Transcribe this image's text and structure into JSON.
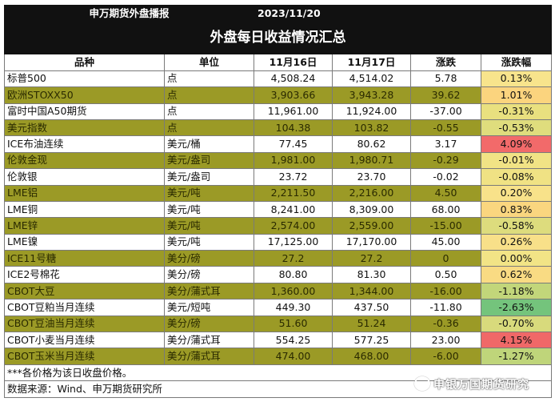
{
  "header": {
    "report_name": "申万期货外盘播报",
    "date": "2023/11/20"
  },
  "title": "外盘每日收益情况汇总",
  "columns": [
    "品种",
    "单位",
    "11月16日",
    "11月17日",
    "涨跌",
    "涨跌幅"
  ],
  "rows": [
    {
      "name": "标普500",
      "unit": "点",
      "d16": "4,508.24",
      "d17": "4,514.02",
      "chg": "5.78",
      "pct": "0.13%",
      "pct_color": "#f8e48c",
      "olive": false
    },
    {
      "name": "欧洲STOXX50",
      "unit": "点",
      "d16": "3,903.66",
      "d17": "3,943.28",
      "chg": "39.62",
      "pct": "1.01%",
      "pct_color": "#fbd47e",
      "olive": true
    },
    {
      "name": "富时中国A50期货",
      "unit": "点",
      "d16": "11,961.00",
      "d17": "11,924.00",
      "chg": "-37.00",
      "pct": "-0.31%",
      "pct_color": "#e9e07f",
      "olive": false
    },
    {
      "name": "美元指数",
      "unit": "点",
      "d16": "104.38",
      "d17": "103.82",
      "chg": "-0.55",
      "pct": "-0.53%",
      "pct_color": "#dfdd7d",
      "olive": true
    },
    {
      "name": "ICE布油连续",
      "unit": "美元/桶",
      "d16": "77.45",
      "d17": "80.62",
      "chg": "3.17",
      "pct": "4.09%",
      "pct_color": "#f26a6a",
      "olive": false
    },
    {
      "name": "伦敦金现",
      "unit": "美元/盎司",
      "d16": "1,981.00",
      "d17": "1,980.71",
      "chg": "-0.29",
      "pct": "-0.01%",
      "pct_color": "#f1e385",
      "olive": true
    },
    {
      "name": "伦敦银",
      "unit": "美元/盎司",
      "d16": "23.72",
      "d17": "23.70",
      "chg": "-0.02",
      "pct": "-0.08%",
      "pct_color": "#f0e284",
      "olive": false
    },
    {
      "name": "LME铝",
      "unit": "美元/吨",
      "d16": "2,211.50",
      "d17": "2,216.00",
      "chg": "4.50",
      "pct": "0.20%",
      "pct_color": "#f8e28a",
      "olive": true
    },
    {
      "name": "LME铜",
      "unit": "美元/吨",
      "d16": "8,241.00",
      "d17": "8,309.00",
      "chg": "68.00",
      "pct": "0.83%",
      "pct_color": "#fad67f",
      "olive": false
    },
    {
      "name": "LME锌",
      "unit": "美元/吨",
      "d16": "2,574.00",
      "d17": "2,559.00",
      "chg": "-15.00",
      "pct": "-0.58%",
      "pct_color": "#dddc7d",
      "olive": true
    },
    {
      "name": "LME镍",
      "unit": "美元/吨",
      "d16": "17,125.00",
      "d17": "17,170.00",
      "chg": "45.00",
      "pct": "0.26%",
      "pct_color": "#f8e089",
      "olive": false
    },
    {
      "name": "ICE11号糖",
      "unit": "美分/磅",
      "d16": "27.2",
      "d17": "27.2",
      "chg": "0",
      "pct": "0.00%",
      "pct_color": "#f2e486",
      "olive": true
    },
    {
      "name": "ICE2号棉花",
      "unit": "美分/磅",
      "d16": "80.80",
      "d17": "81.30",
      "chg": "0.50",
      "pct": "0.62%",
      "pct_color": "#f9db83",
      "olive": false
    },
    {
      "name": "CBOT大豆",
      "unit": "美分/蒲式耳",
      "d16": "1,360.00",
      "d17": "1,344.00",
      "chg": "-16.00",
      "pct": "-1.18%",
      "pct_color": "#c2d67a",
      "olive": true
    },
    {
      "name": "CBOT豆粕当月连续",
      "unit": "美元/短吨",
      "d16": "449.30",
      "d17": "437.50",
      "chg": "-11.80",
      "pct": "-2.63%",
      "pct_color": "#74c47c",
      "olive": false
    },
    {
      "name": "CBOT豆油当月连续",
      "unit": "美分/磅",
      "d16": "51.60",
      "d17": "51.24",
      "chg": "-0.36",
      "pct": "-0.70%",
      "pct_color": "#d8da7c",
      "olive": true
    },
    {
      "name": "CBOT小麦当月连续",
      "unit": "美分/蒲式耳",
      "d16": "554.25",
      "d17": "577.25",
      "chg": "23.00",
      "pct": "4.15%",
      "pct_color": "#f06868",
      "olive": false
    },
    {
      "name": "CBOT玉米当月连续",
      "unit": "美分/蒲式耳",
      "d16": "474.00",
      "d17": "468.00",
      "chg": "-6.00",
      "pct": "-1.27%",
      "pct_color": "#bfd57a",
      "olive": true
    }
  ],
  "note": "***各价格为该日收盘价格。",
  "source": "数据来源：Wind、申万期货研究所",
  "watermark": "申银万国期货研究",
  "colors": {
    "olive": "#9b9a26",
    "header_black": "#111111"
  }
}
